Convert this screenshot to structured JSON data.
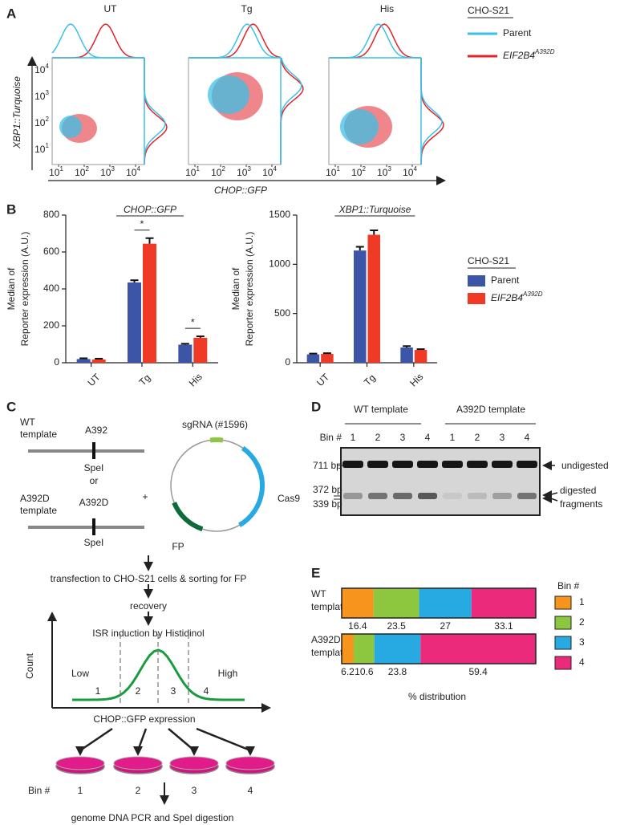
{
  "panel_labels": [
    "A",
    "B",
    "C",
    "D",
    "E"
  ],
  "panel_a": {
    "columns": [
      "UT",
      "Tg",
      "His"
    ],
    "legend_title": "CHO-S21",
    "legend": [
      {
        "name": "Parent",
        "color": "#3cc0e6"
      },
      {
        "name": "EIF2B4",
        "sup": "A392D",
        "color": "#e2232b"
      }
    ],
    "y_label": "XBP1::Turquoise",
    "x_label": "CHOP::GFP",
    "tick_base": "10",
    "tick_exponents": [
      "1",
      "2",
      "3",
      "4"
    ]
  },
  "chart_data": [
    {
      "type": "bar",
      "title": "CHOP::GFP",
      "y_label": [
        "Median of",
        "Reporter expression (A.U.)"
      ],
      "categories": [
        "UT",
        "Tg",
        "His"
      ],
      "ylim": [
        0,
        800
      ],
      "yticks": [
        0,
        200,
        400,
        600,
        800
      ],
      "series": [
        {
          "name": "Parent",
          "color": "#3d55a6",
          "values": [
            20,
            435,
            98
          ],
          "errors": [
            4,
            12,
            5
          ]
        },
        {
          "name": "EIF2B4",
          "sup": "A392D",
          "color": "#ef3a26",
          "values": [
            18,
            645,
            135
          ],
          "errors": [
            4,
            30,
            8
          ]
        }
      ],
      "annotations": [
        "*",
        "*"
      ],
      "legend_title": "CHO-S21"
    },
    {
      "type": "bar",
      "title": "XBP1::Turquoise",
      "y_label": [
        "Median of",
        "Reporter expression (A.U.)"
      ],
      "categories": [
        "UT",
        "Tg",
        "His"
      ],
      "ylim": [
        0,
        1500
      ],
      "yticks": [
        0,
        500,
        1000,
        1500
      ],
      "series": [
        {
          "name": "Parent",
          "color": "#3d55a6",
          "values": [
            85,
            1140,
            155
          ],
          "errors": [
            8,
            38,
            14
          ]
        },
        {
          "name": "EIF2B4",
          "sup": "A392D",
          "color": "#ef3a26",
          "values": [
            90,
            1300,
            130
          ],
          "errors": [
            7,
            45,
            8
          ]
        }
      ]
    },
    {
      "type": "stacked_barh",
      "categories": [
        "WT template",
        "A392D template"
      ],
      "xlim": [
        0,
        100
      ],
      "x_label": "% distribution",
      "legend_title": "Bin #",
      "series": [
        {
          "name": "1",
          "color": "#f7941d",
          "values": [
            16.4,
            6.2
          ]
        },
        {
          "name": "2",
          "color": "#8dc63f",
          "values": [
            23.5,
            10.6
          ]
        },
        {
          "name": "3",
          "color": "#27aae1",
          "values": [
            27,
            23.8
          ]
        },
        {
          "name": "4",
          "color": "#ec2a7b",
          "values": [
            33.1,
            59.4
          ]
        }
      ]
    }
  ],
  "panel_c": {
    "wt_template": [
      "WT",
      "template"
    ],
    "wt_site": "A392",
    "spe1": "SpeI",
    "or": "or",
    "mut_template": [
      "A392D",
      "template"
    ],
    "mut_site": "A392D",
    "plus": "+",
    "sgrna": "sgRNA (#1596)",
    "cas9": "Cas9",
    "fp": "FP",
    "steps": [
      "transfection to CHO-S21 cells & sorting for FP",
      "recovery",
      "ISR induction by Histidinol"
    ],
    "count": "Count",
    "low": "Low",
    "high": "High",
    "bins": [
      "1",
      "2",
      "3",
      "4"
    ],
    "x_axis": "CHOP::GFP expression",
    "bin_label": "Bin #",
    "final": "genome DNA PCR and SpeI digestion"
  },
  "panel_d": {
    "groups": [
      "WT template",
      "A392D template"
    ],
    "bin_label": "Bin #",
    "lanes": [
      "1",
      "2",
      "3",
      "4",
      "1",
      "2",
      "3",
      "4"
    ],
    "sizes": [
      "711 bp",
      "372 bp",
      "339 bp"
    ],
    "undigested": "undigested",
    "digested": [
      "digested",
      "fragments"
    ]
  }
}
